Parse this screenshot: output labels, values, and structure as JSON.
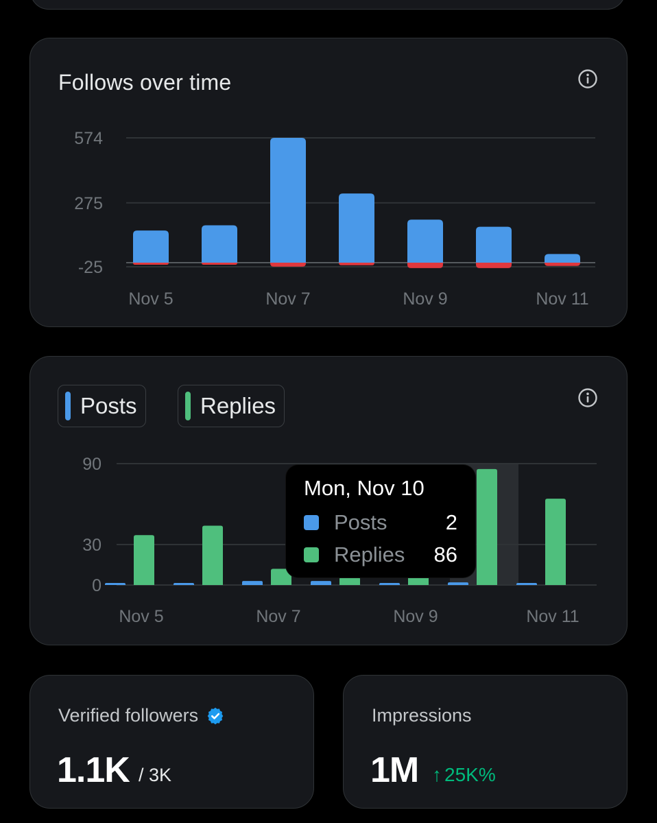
{
  "colors": {
    "background": "#000000",
    "card": "#16181c",
    "posts_blue": "#4a99e9",
    "replies_green": "#4fbf7d",
    "negative_red": "#e0383e",
    "positive_green": "#00ba7c",
    "axis_text": "#71767b",
    "gridline": "#2f3336"
  },
  "follows_card": {
    "title": "Follows over time",
    "info_icon": "info-icon"
  },
  "posts_card": {
    "legend": [
      {
        "label": "Posts",
        "color": "#4a99e9"
      },
      {
        "label": "Replies",
        "color": "#4fbf7d"
      }
    ],
    "info_icon": "info-icon",
    "tooltip": {
      "title": "Mon, Nov 10",
      "rows": [
        {
          "label": "Posts",
          "value": "2",
          "color": "#4a99e9"
        },
        {
          "label": "Replies",
          "value": "86",
          "color": "#4fbf7d"
        }
      ]
    }
  },
  "chart_data": [
    {
      "type": "bar",
      "title": "Follows over time",
      "categories": [
        "Nov 5",
        "Nov 6",
        "Nov 7",
        "Nov 8",
        "Nov 9",
        "Nov 10",
        "Nov 11"
      ],
      "x_tick_labels": [
        "Nov 5",
        "Nov 7",
        "Nov 9",
        "Nov 11"
      ],
      "y_ticks": [
        574,
        275,
        -25
      ],
      "ylim": [
        -25,
        574
      ],
      "series": [
        {
          "color": "#4a99e9",
          "values": [
            148,
            172,
            574,
            318,
            198,
            165,
            40
          ]
        },
        {
          "color": "#e0383e",
          "values": [
            -8,
            -3,
            -18,
            -12,
            -25,
            -25,
            -15
          ]
        }
      ],
      "stacked_around_zero": true,
      "grid": true
    },
    {
      "type": "bar",
      "categories": [
        "Nov 5",
        "Nov 6",
        "Nov 7",
        "Nov 8",
        "Nov 9",
        "Nov 10",
        "Nov 11"
      ],
      "x_tick_labels": [
        "Nov 5",
        "Nov 7",
        "Nov 9",
        "Nov 11"
      ],
      "y_ticks": [
        90,
        30,
        0
      ],
      "ylim": [
        0,
        90
      ],
      "series": [
        {
          "name": "Posts",
          "color": "#4a99e9",
          "values": [
            1,
            1,
            3,
            3,
            1,
            2,
            1
          ]
        },
        {
          "name": "Replies",
          "color": "#4fbf7d",
          "values": [
            37,
            44,
            12,
            6,
            12,
            86,
            64
          ]
        }
      ],
      "highlighted_category": "Nov 10",
      "grid": true
    }
  ],
  "verified_card": {
    "label": "Verified followers",
    "badge_icon": "verified-badge-icon",
    "value": "1.1K",
    "sub": "/ 3K"
  },
  "impressions_card": {
    "label": "Impressions",
    "value": "1M",
    "change_arrow": "↑",
    "change": "25K%"
  }
}
